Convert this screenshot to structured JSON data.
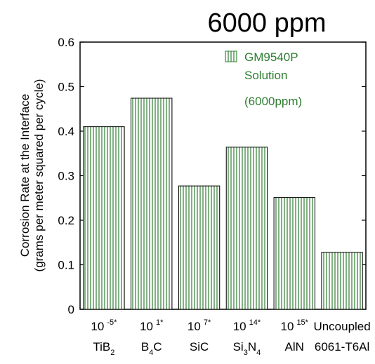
{
  "chart_data": {
    "type": "bar",
    "title": "6000 ppm",
    "ylabel_line1": "Corrosion Rate at the Interface",
    "ylabel_line2": "(grams per meter squared per cycle)",
    "ylim": [
      0,
      0.6
    ],
    "yticks": [
      "0",
      "0.1",
      "0.2",
      "0.3",
      "0.4",
      "0.5",
      "0.6"
    ],
    "grid": false,
    "legend": {
      "placement": "top-right",
      "lines": [
        "GM9540P",
        "Solution",
        "(6000ppm)"
      ]
    },
    "categories": [
      {
        "resistivity_base": "10",
        "resistivity_exp": "-5*",
        "material": "TiB",
        "material_sub": "2",
        "material_tail": ""
      },
      {
        "resistivity_base": "10",
        "resistivity_exp": "1*",
        "material": "B",
        "material_sub": "4",
        "material_tail": "C"
      },
      {
        "resistivity_base": "10",
        "resistivity_exp": "7*",
        "material": "SiC",
        "material_sub": "",
        "material_tail": ""
      },
      {
        "resistivity_base": "10",
        "resistivity_exp": "14*",
        "material": "Si",
        "material_sub": "3",
        "material_tail": "N",
        "material_sub2": "4"
      },
      {
        "resistivity_base": "10",
        "resistivity_exp": "15*",
        "material": "AlN",
        "material_sub": "",
        "material_tail": ""
      },
      {
        "resistivity_base": "Uncoupled",
        "resistivity_exp": "",
        "material": "6061-T6Al",
        "material_sub": "",
        "material_tail": ""
      }
    ],
    "values": [
      0.41,
      0.474,
      0.277,
      0.364,
      0.251,
      0.128
    ],
    "colors": {
      "bar_hatch": "#2e7d32",
      "legend_text": "#2e7d32",
      "axis": "#000000",
      "text": "#000000"
    }
  }
}
